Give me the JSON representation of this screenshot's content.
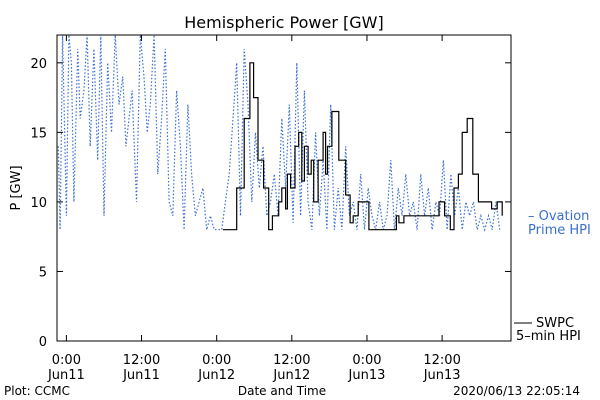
{
  "chart_data": {
    "type": "line",
    "title": "Hemispheric Power [GW]",
    "ylabel": "P [GW]",
    "xlabel": "Date and Time",
    "ylim": [
      0,
      22
    ],
    "yticks": [
      0,
      5,
      10,
      15,
      20
    ],
    "xticks": [
      {
        "time": "0:00",
        "date": "Jun11",
        "hours": 0
      },
      {
        "time": "12:00",
        "date": "Jun11",
        "hours": 12
      },
      {
        "time": "0:00",
        "date": "Jun12",
        "hours": 24
      },
      {
        "time": "12:00",
        "date": "Jun12",
        "hours": 36
      },
      {
        "time": "0:00",
        "date": "Jun13",
        "hours": 48
      },
      {
        "time": "12:00",
        "date": "Jun13",
        "hours": 60
      }
    ],
    "xlim_hours": [
      -1.5,
      71
    ],
    "series": [
      {
        "name": "SWPC 5-min HPI",
        "label_lines": [
          "SWPC",
          "5–min HPI"
        ],
        "color": "#000000",
        "style": "solid",
        "x_hours": [
          25,
          26.5,
          27.2,
          28.4,
          29.3,
          29.9,
          30.6,
          31.5,
          32.3,
          32.9,
          33.9,
          34.4,
          35.0,
          35.3,
          35.8,
          36.5,
          37.1,
          37.6,
          38.0,
          38.6,
          39.1,
          39.5,
          40.2,
          41.0,
          41.4,
          41.7,
          42.4,
          43.5,
          44.6,
          45.3,
          45.8,
          46.6,
          48.3,
          49.2,
          50.2,
          51.4,
          52.0,
          52.7,
          53.1,
          53.9,
          55.4,
          57.3,
          58.5,
          59.5,
          60.4,
          61.3,
          61.9,
          62.6,
          63.2,
          64.0,
          64.9,
          65.8,
          66.5,
          67.2,
          67.9,
          68.8,
          69.6
        ],
        "y": [
          8,
          8,
          11,
          16,
          20,
          17.5,
          13,
          11,
          8,
          9,
          10,
          11,
          9.5,
          12,
          11,
          14,
          15,
          11.5,
          14,
          12,
          13,
          10,
          13,
          15,
          12,
          14,
          16.5,
          13,
          10.5,
          8.5,
          9,
          10,
          8,
          8,
          8,
          8,
          8,
          9,
          8.5,
          9,
          9,
          9,
          9,
          10,
          9,
          8,
          11,
          12,
          15,
          16,
          12,
          10,
          10,
          10,
          9.5,
          10,
          9
        ]
      },
      {
        "name": "Ovation Prime HPI",
        "label_lines": [
          "– Ovation",
          "Prime HPI"
        ],
        "color": "#3a6fd0",
        "style": "dotted",
        "x_hours": [
          -1.3,
          -1.0,
          -0.6,
          0.0,
          0.4,
          0.8,
          1.2,
          1.8,
          2.2,
          2.8,
          3.3,
          3.8,
          4.4,
          5.0,
          5.5,
          6.0,
          6.6,
          7.2,
          7.8,
          8.4,
          9.0,
          9.5,
          10.0,
          10.5,
          11.2,
          11.8,
          12.4,
          12.9,
          13.4,
          14.0,
          14.6,
          15.2,
          15.8,
          16.4,
          17.0,
          17.6,
          18.2,
          18.8,
          19.4,
          20.0,
          20.6,
          21.2,
          21.8,
          22.4,
          23.0,
          23.6,
          24.2,
          24.8,
          25.4,
          26.0,
          26.6,
          27.2,
          27.8,
          28.4,
          29.0,
          29.6,
          30.2,
          30.8,
          31.4,
          32.0,
          32.6,
          33.2,
          33.8,
          34.4,
          35.0,
          35.6,
          36.2,
          36.8,
          37.4,
          38.0,
          38.6,
          39.2,
          39.8,
          40.4,
          41.0,
          41.6,
          42.2,
          42.8,
          43.4,
          44.0,
          44.6,
          45.2,
          45.8,
          46.4,
          47.0,
          47.6,
          48.2,
          48.8,
          49.4,
          50.0,
          50.6,
          51.2,
          51.8,
          52.4,
          53.0,
          53.6,
          54.2,
          54.8,
          55.4,
          56.0,
          56.6,
          57.2,
          57.8,
          58.4,
          59.0,
          59.6,
          60.2,
          60.8,
          61.4,
          62.0,
          62.6,
          63.2,
          63.8,
          64.4,
          65.0,
          65.6,
          66.2,
          66.8,
          67.4,
          68.0,
          68.6,
          69.2
        ],
        "y": [
          14,
          8,
          22,
          9,
          22,
          20,
          10,
          21,
          16,
          18,
          22,
          14,
          21,
          13,
          22,
          9,
          20,
          15,
          22,
          17,
          19,
          14,
          16,
          18,
          10,
          22,
          19,
          15,
          17,
          22,
          12,
          16,
          21,
          10,
          9,
          18,
          14,
          8,
          17,
          12,
          9,
          10,
          11,
          8,
          9,
          8,
          8,
          8,
          10,
          12,
          16,
          20,
          9,
          21,
          17,
          10,
          15,
          11,
          14,
          9,
          10,
          12,
          9,
          16,
          11,
          17,
          8.5,
          20,
          9,
          18,
          10,
          8,
          15,
          9,
          13,
          8,
          17,
          8,
          11,
          8,
          14,
          9,
          10,
          8,
          12,
          8,
          11,
          9,
          8,
          10,
          8,
          9,
          13,
          8,
          11,
          9,
          12,
          9,
          10,
          8,
          12,
          9,
          11,
          8,
          10,
          9,
          13,
          8,
          12,
          9,
          11,
          8,
          10,
          9,
          10,
          8,
          9,
          8,
          9,
          8,
          10,
          8
        ]
      }
    ]
  },
  "footer": {
    "plot_credit": "Plot: CCMC",
    "timestamp": "2020/06/13 22:05:14"
  }
}
